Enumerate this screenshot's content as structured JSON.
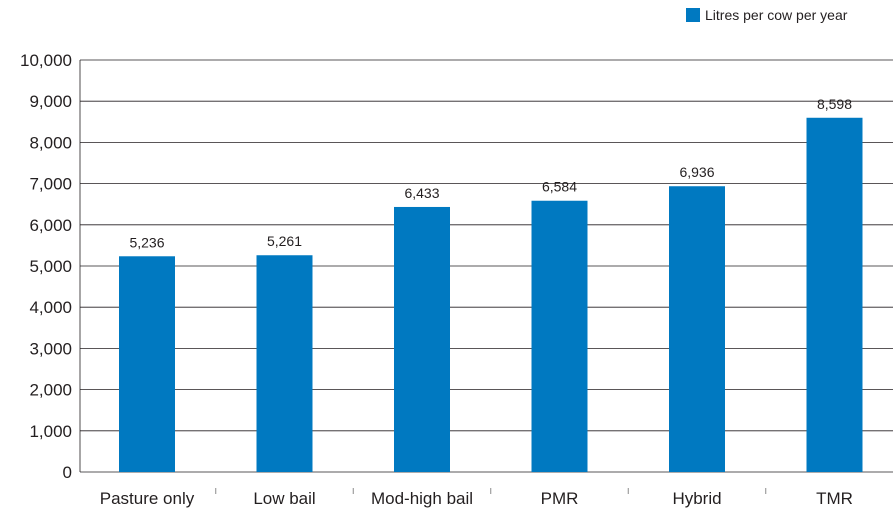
{
  "chart_data": {
    "type": "bar",
    "categories": [
      "Pasture only",
      "Low bail",
      "Mod-high bail",
      "PMR",
      "Hybrid",
      "TMR"
    ],
    "series": [
      {
        "name": "Litres per cow per year",
        "values": [
          5236,
          5261,
          6433,
          6584,
          6936,
          8598
        ],
        "value_labels": [
          "5,236",
          "5,261",
          "6,433",
          "6,584",
          "6,936",
          "8,598"
        ],
        "color": "#0079c1"
      }
    ],
    "yticks": [
      0,
      1000,
      2000,
      3000,
      4000,
      5000,
      6000,
      7000,
      8000,
      9000,
      10000
    ],
    "ytick_labels": [
      "0",
      "1,000",
      "2,000",
      "3,000",
      "4,000",
      "5,000",
      "6,000",
      "7,000",
      "8,000",
      "9,000",
      "10,000"
    ],
    "ylim": [
      0,
      10000
    ],
    "grid": true,
    "legend_position": "top-right"
  }
}
